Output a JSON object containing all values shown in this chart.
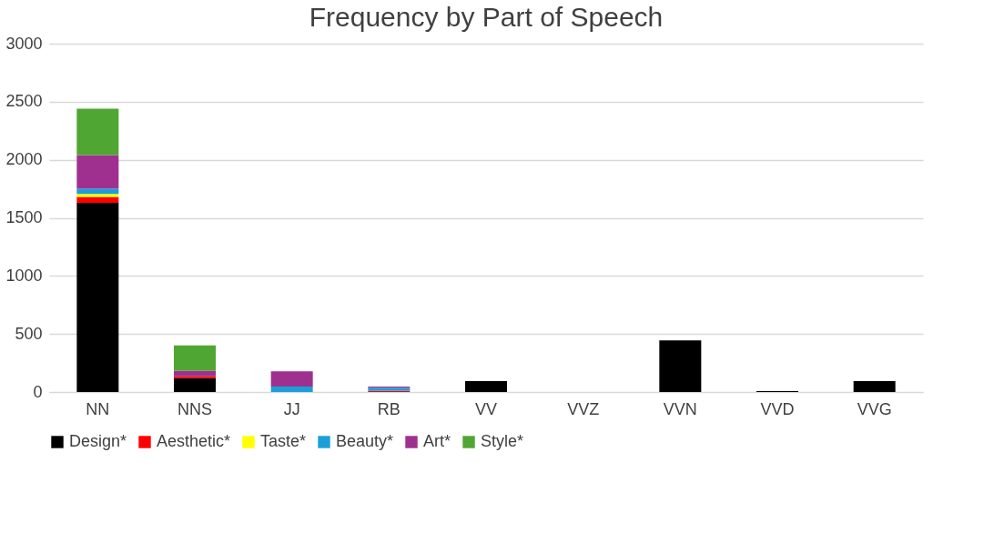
{
  "chart_data": {
    "type": "bar",
    "title": "Frequency by Part of Speech",
    "stacked": true,
    "categories": [
      "NN",
      "NNS",
      "JJ",
      "RB",
      "VV",
      "VVZ",
      "VVN",
      "VVD",
      "VVG"
    ],
    "series": [
      {
        "name": "Design*",
        "color": "#000000",
        "values": [
          1630,
          120,
          0,
          0,
          94,
          0,
          444,
          8,
          94
        ]
      },
      {
        "name": "Aesthetic*",
        "color": "#ff0000",
        "values": [
          50,
          15,
          0,
          10,
          0,
          0,
          0,
          0,
          0
        ]
      },
      {
        "name": "Taste*",
        "color": "#ffff00",
        "values": [
          25,
          0,
          0,
          0,
          0,
          0,
          0,
          0,
          0
        ]
      },
      {
        "name": "Beauty*",
        "color": "#1aa0d8",
        "values": [
          45,
          0,
          47,
          27,
          0,
          0,
          0,
          0,
          0
        ]
      },
      {
        "name": "Art*",
        "color": "#a0308f",
        "values": [
          290,
          47,
          131,
          10,
          0,
          0,
          0,
          0,
          0
        ]
      },
      {
        "name": "Style*",
        "color": "#50a632",
        "values": [
          400,
          220,
          0,
          0,
          0,
          0,
          0,
          0,
          0
        ]
      }
    ],
    "ylim": [
      0,
      3000
    ],
    "yticks": [
      0,
      500,
      1000,
      1500,
      2000,
      2500,
      3000
    ],
    "grid": "y",
    "legend": "bottom"
  }
}
